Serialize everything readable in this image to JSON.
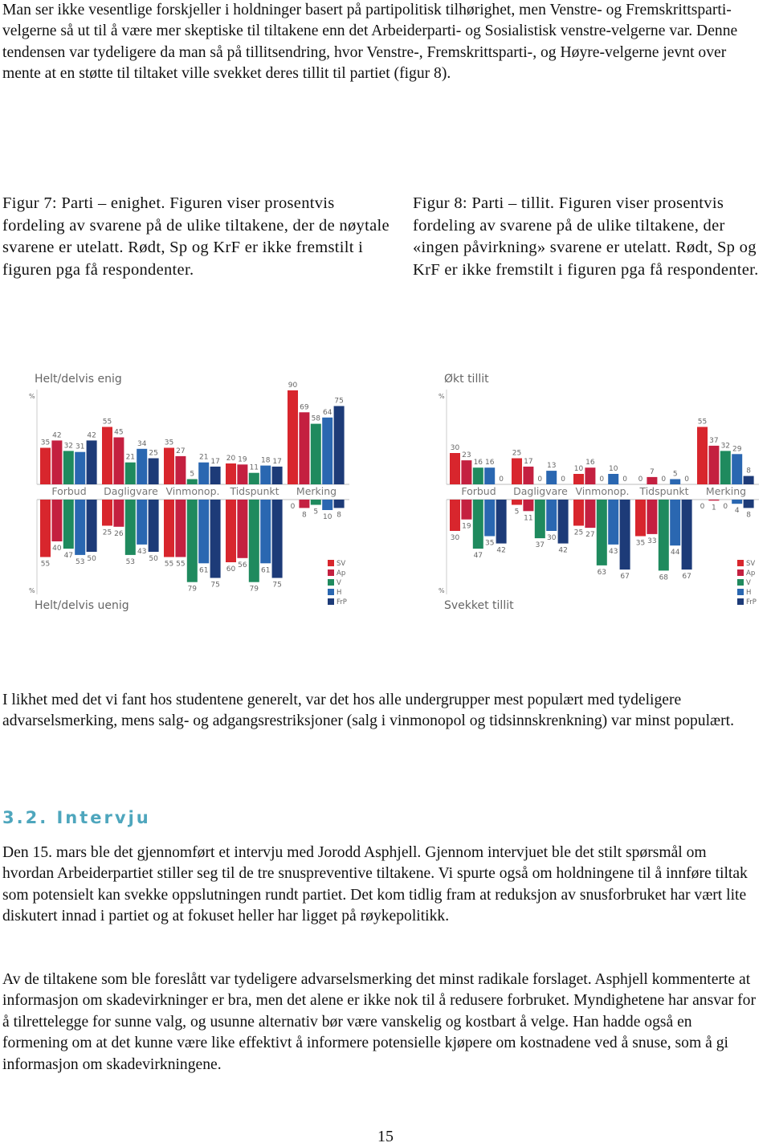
{
  "paragraphs": [
    "Man ser ikke vesentlige forskjeller i holdninger basert på partipolitisk tilhørighet, men Venstre- og Fremskrittsparti-velgerne så ut til å være mer skeptiske til tiltakene enn det Arbeiderparti- og Sosialistisk venstre-velgerne var. Denne tendensen var tydeligere da man så på tillitsendring, hvor Venstre-, Fremskrittsparti-, og Høyre-velgerne jevnt over mente at en støtte til tiltaket ville svekket deres tillit til partiet (figur 8).",
    "I likhet med det vi fant hos studentene generelt, var det hos alle undergrupper mest populært med tydeligere advarselsmerking, mens salg- og adgangsrestriksjoner (salg i vinmonopol og tidsinnskrenkning) var minst populært."
  ],
  "figures": [
    {
      "caption": "Figur 7: Parti – enighet. Figuren viser prosentvis fordeling av svarene på de ulike tiltakene, der de nøytale svarene er utelatt. Rødt, Sp og KrF er ikke fremstilt i figuren pga få respondenter.",
      "top_title": "Helt/delvis enig",
      "bottom_title": "Helt/delvis uenig",
      "unit": "%",
      "categories": [
        "Forbud",
        "Dagligvare",
        "Vinmonop.",
        "Tidspunkt",
        "Merking"
      ],
      "series": [
        {
          "name": "SV",
          "color": "#d8262d",
          "top": [
            35,
            55,
            35,
            20,
            90
          ],
          "bottom": [
            55,
            25,
            55,
            60,
            0
          ]
        },
        {
          "name": "Ap",
          "color": "#c42040",
          "top": [
            42,
            45,
            27,
            19,
            69
          ],
          "bottom": [
            40,
            26,
            55,
            56,
            8
          ]
        },
        {
          "name": "V",
          "color": "#1f8a5e",
          "top": [
            32,
            21,
            5,
            11,
            58
          ],
          "bottom": [
            47,
            53,
            79,
            79,
            5
          ]
        },
        {
          "name": "H",
          "color": "#2a67b1",
          "top": [
            31,
            34,
            21,
            18,
            64
          ],
          "bottom": [
            53,
            43,
            61,
            61,
            10
          ]
        },
        {
          "name": "FrP",
          "color": "#1d3b78",
          "top": [
            42,
            25,
            17,
            17,
            75
          ],
          "bottom": [
            50,
            50,
            75,
            75,
            8
          ]
        }
      ]
    },
    {
      "caption": "Figur 8: Parti – tillit. Figuren viser prosentvis fordeling av svarene på de ulike tiltakene, der «ingen påvirkning» svarene er utelatt. Rødt, Sp og KrF er ikke fremstilt i figuren pga få respondenter.",
      "top_title": "Økt tillit",
      "bottom_title": "Svekket tillit",
      "unit": "%",
      "categories": [
        "Forbud",
        "Dagligvare",
        "Vinmonop.",
        "Tidspunkt",
        "Merking"
      ],
      "series": [
        {
          "name": "SV",
          "color": "#d8262d",
          "top": [
            30,
            25,
            10,
            0,
            55
          ],
          "bottom": [
            30,
            5,
            25,
            35,
            0
          ]
        },
        {
          "name": "Ap",
          "color": "#c42040",
          "top": [
            23,
            17,
            16,
            7,
            37
          ],
          "bottom": [
            19,
            11,
            27,
            33,
            1
          ]
        },
        {
          "name": "V",
          "color": "#1f8a5e",
          "top": [
            16,
            0,
            0,
            0,
            32
          ],
          "bottom": [
            47,
            37,
            63,
            68,
            0
          ]
        },
        {
          "name": "H",
          "color": "#2a67b1",
          "top": [
            16,
            13,
            10,
            5,
            29
          ],
          "bottom": [
            35,
            30,
            43,
            44,
            4
          ]
        },
        {
          "name": "FrP",
          "color": "#1d3b78",
          "top": [
            0,
            0,
            0,
            0,
            8
          ],
          "bottom": [
            42,
            42,
            67,
            67,
            8
          ]
        }
      ]
    }
  ],
  "section": {
    "heading": "3.2. Intervju",
    "paragraphs": [
      "Den 15. mars ble det gjennomført et intervju med Jorodd Asphjell. Gjennom intervjuet ble det stilt spørsmål om hvordan Arbeiderpartiet stiller seg til de tre snuspreventive tiltakene. Vi spurte også om holdningene til å innføre tiltak som potensielt kan svekke oppslutningen rundt partiet. Det kom tidlig fram at reduksjon av snusforbruket har vært lite diskutert innad i partiet og at fokuset heller har ligget på røykepolitikk.",
      "Av de tiltakene som ble foreslått var tydeligere advarselsmerking det minst radikale forslaget. Asphjell kommenterte at informasjon om skadevirkninger er bra, men det alene er ikke nok til å redusere forbruket. Myndighetene har ansvar for å tilrettelegge for sunne valg, og usunne alternativ bør være vanskelig og kostbart å velge. Han hadde også en formening om at det kunne være like effektivt å informere potensielle kjøpere om kostnadene ved å snuse, som å gi informasjon om skadevirkningene."
    ]
  },
  "page_number": "15"
}
